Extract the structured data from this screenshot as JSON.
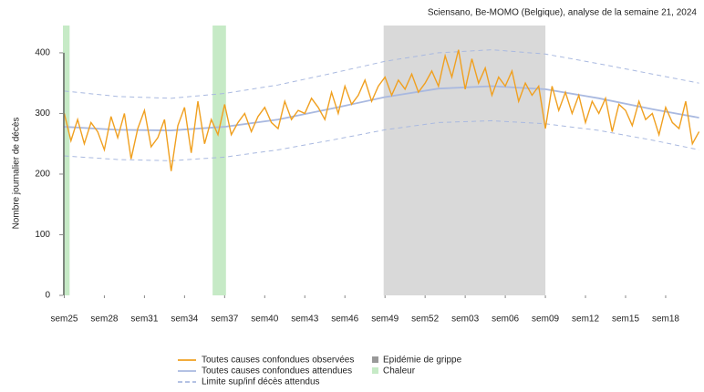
{
  "chart_data": {
    "type": "line",
    "title": "Sciensano, Be-MOMO (Belgique), analyse de la semaine 21, 2024",
    "y_label": "Nombre journalier de décès",
    "xlim": [
      -0.1,
      47.8
    ],
    "ylim": [
      0,
      445
    ],
    "xticks": [
      {
        "value": 0,
        "label": "sem25"
      },
      {
        "value": 3,
        "label": "sem28"
      },
      {
        "value": 6,
        "label": "sem31"
      },
      {
        "value": 9,
        "label": "sem34"
      },
      {
        "value": 12,
        "label": "sem37"
      },
      {
        "value": 15,
        "label": "sem40"
      },
      {
        "value": 18,
        "label": "sem43"
      },
      {
        "value": 21,
        "label": "sem46"
      },
      {
        "value": 24,
        "label": "sem49"
      },
      {
        "value": 27,
        "label": "sem52"
      },
      {
        "value": 30,
        "label": "sem03"
      },
      {
        "value": 33,
        "label": "sem06"
      },
      {
        "value": 36,
        "label": "sem09"
      },
      {
        "value": 39,
        "label": "sem12"
      },
      {
        "value": 42,
        "label": "sem15"
      },
      {
        "value": 45,
        "label": "sem18"
      }
    ],
    "yticks": [
      0,
      100,
      200,
      300,
      400
    ],
    "flu_label": "Epidémie de grippe",
    "flu_color": "#d9d9d9",
    "flu_periods": [
      [
        23.9,
        36.0
      ]
    ],
    "heat_label": "Chaleur",
    "heat_color": "#c6eac6",
    "heat_periods": [
      [
        -0.1,
        0.4
      ],
      [
        11.1,
        12.1
      ]
    ],
    "series": [
      {
        "name": "Toutes causes confondues observées",
        "color": "#f0a020",
        "dash": false,
        "x": [
          0,
          0.5,
          1,
          1.5,
          2,
          2.5,
          3,
          3.5,
          4,
          4.5,
          5,
          5.5,
          6,
          6.5,
          7,
          7.5,
          8,
          8.5,
          9,
          9.5,
          10,
          10.5,
          11,
          11.5,
          12,
          12.5,
          13,
          13.5,
          14,
          14.5,
          15,
          15.5,
          16,
          16.5,
          17,
          17.5,
          18,
          18.5,
          19,
          19.5,
          20,
          20.5,
          21,
          21.5,
          22,
          22.5,
          23,
          23.5,
          24,
          24.5,
          25,
          25.5,
          26,
          26.5,
          27,
          27.5,
          28,
          28.5,
          29,
          29.5,
          30,
          30.5,
          31,
          31.5,
          32,
          32.5,
          33,
          33.5,
          34,
          34.5,
          35,
          35.5,
          36,
          36.5,
          37,
          37.5,
          38,
          38.5,
          39,
          39.5,
          40,
          40.5,
          41,
          41.5,
          42,
          42.5,
          43,
          43.5,
          44,
          44.5,
          45,
          45.5,
          46,
          46.5,
          47,
          47.5
        ],
        "values": [
          300,
          255,
          290,
          250,
          285,
          270,
          240,
          295,
          260,
          300,
          225,
          275,
          305,
          245,
          260,
          290,
          205,
          280,
          310,
          235,
          320,
          250,
          290,
          265,
          315,
          265,
          285,
          300,
          270,
          295,
          310,
          285,
          275,
          320,
          290,
          305,
          300,
          325,
          310,
          290,
          335,
          300,
          345,
          315,
          330,
          355,
          320,
          345,
          360,
          330,
          355,
          340,
          365,
          335,
          350,
          370,
          345,
          395,
          360,
          405,
          340,
          390,
          350,
          375,
          330,
          360,
          345,
          370,
          320,
          350,
          330,
          345,
          275,
          345,
          305,
          335,
          300,
          330,
          285,
          320,
          300,
          325,
          270,
          315,
          305,
          280,
          320,
          290,
          300,
          265,
          310,
          285,
          275,
          320,
          250,
          270
        ]
      },
      {
        "name": "Toutes causes confondues attendues",
        "color": "#a9b9e0",
        "dash": false,
        "x": [
          0,
          4,
          8,
          12,
          16,
          20,
          24,
          28,
          32,
          36,
          40,
          44,
          47.5
        ],
        "values": [
          278,
          273,
          272,
          278,
          290,
          308,
          327,
          341,
          345,
          340,
          325,
          307,
          293
        ]
      },
      {
        "name": "Limite sup/inf décès attendus",
        "color": "#a9b9e0",
        "dash": true,
        "x": [
          0,
          4,
          8,
          12,
          16,
          20,
          24,
          28,
          32,
          36,
          40,
          44,
          47.5
        ],
        "values": [
          337,
          328,
          325,
          333,
          347,
          366,
          386,
          400,
          405,
          398,
          382,
          365,
          350
        ]
      },
      {
        "color": "#a9b9e0",
        "dash": true,
        "x": [
          0,
          4,
          8,
          12,
          16,
          20,
          24,
          28,
          32,
          36,
          40,
          44,
          47.5
        ],
        "values": [
          230,
          224,
          222,
          228,
          240,
          256,
          273,
          285,
          288,
          283,
          272,
          256,
          240
        ]
      }
    ]
  }
}
